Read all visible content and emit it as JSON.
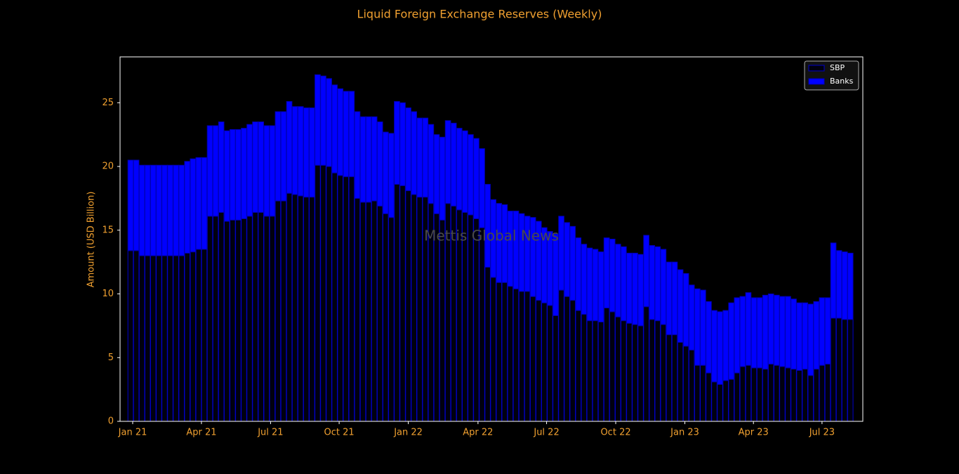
{
  "chart_data": {
    "type": "stacked_bar",
    "title": "Liquid Foreign Exchange Reserves (Weekly)",
    "y_label": "Amount (USD Billion)",
    "watermark": "Mettis Global News",
    "categories": [
      null,
      null,
      null,
      null,
      null,
      null,
      null,
      null,
      null,
      null,
      null,
      null,
      null,
      null,
      null,
      null,
      null,
      null,
      null,
      null,
      null,
      null,
      null,
      null,
      null,
      null,
      null,
      null,
      null,
      null,
      null,
      null,
      null,
      null,
      null,
      null,
      null,
      null,
      null,
      null,
      null,
      null,
      null,
      null,
      null,
      null,
      null,
      null,
      null,
      null,
      null,
      null,
      null,
      null,
      null,
      null,
      null,
      null,
      null,
      null,
      null,
      null,
      null,
      null,
      null,
      null,
      null,
      null,
      null,
      null,
      null,
      null,
      null,
      null,
      null,
      null,
      null,
      null,
      null,
      null,
      null,
      null,
      null,
      null,
      null,
      null,
      null,
      null,
      null,
      null,
      null,
      null,
      null,
      null,
      null,
      null,
      null,
      null,
      null,
      null,
      null,
      null,
      null,
      null,
      null,
      null,
      null,
      null,
      null,
      null,
      null,
      null,
      null,
      null,
      null,
      null,
      null,
      null,
      null,
      null,
      null,
      null,
      null,
      null,
      null,
      null,
      null,
      null
    ],
    "series": [
      {
        "name": "SBP",
        "color": "#00000f",
        "edgecolor": "#0000c8",
        "values": [
          13.4,
          13.4,
          13.0,
          13.0,
          13.0,
          13.0,
          13.0,
          13.0,
          13.0,
          13.0,
          13.2,
          13.3,
          13.5,
          13.5,
          16.1,
          16.1,
          16.4,
          15.7,
          15.8,
          15.8,
          15.9,
          16.1,
          16.4,
          16.4,
          16.1,
          16.1,
          17.3,
          17.3,
          17.9,
          17.8,
          17.7,
          17.6,
          17.6,
          20.1,
          20.1,
          20.0,
          19.5,
          19.3,
          19.2,
          19.2,
          17.5,
          17.2,
          17.2,
          17.3,
          16.9,
          16.3,
          16.0,
          18.6,
          18.5,
          18.1,
          17.8,
          17.6,
          17.6,
          17.1,
          16.3,
          15.8,
          17.1,
          16.9,
          16.6,
          16.4,
          16.2,
          15.9,
          15.2,
          12.1,
          11.3,
          10.9,
          10.9,
          10.6,
          10.4,
          10.2,
          10.2,
          9.8,
          9.5,
          9.3,
          9.1,
          8.3,
          10.3,
          9.8,
          9.5,
          8.7,
          8.4,
          7.9,
          7.9,
          7.8,
          8.9,
          8.6,
          8.2,
          7.9,
          7.7,
          7.6,
          7.5,
          9.0,
          8.0,
          7.9,
          7.6,
          6.8,
          6.8,
          6.2,
          5.9,
          5.6,
          4.4,
          4.4,
          3.8,
          3.1,
          2.9,
          3.2,
          3.3,
          3.8,
          4.3,
          4.4,
          4.2,
          4.2,
          4.1,
          4.5,
          4.4,
          4.3,
          4.2,
          4.1,
          4.0,
          4.1,
          3.6,
          4.1,
          4.4,
          4.5,
          8.1,
          8.1,
          8.0,
          8.0
        ]
      },
      {
        "name": "Banks",
        "color": "#0000ff",
        "edgecolor": "#0000b0",
        "values": [
          7.1,
          7.1,
          7.1,
          7.1,
          7.1,
          7.1,
          7.1,
          7.1,
          7.1,
          7.1,
          7.2,
          7.3,
          7.2,
          7.2,
          7.1,
          7.1,
          7.1,
          7.1,
          7.1,
          7.1,
          7.1,
          7.2,
          7.1,
          7.1,
          7.1,
          7.1,
          7.0,
          7.0,
          7.2,
          6.9,
          7.0,
          7.0,
          7.0,
          7.1,
          7.0,
          6.9,
          6.9,
          6.8,
          6.7,
          6.7,
          6.8,
          6.7,
          6.7,
          6.6,
          6.6,
          6.4,
          6.6,
          6.5,
          6.5,
          6.5,
          6.5,
          6.2,
          6.2,
          6.2,
          6.2,
          6.5,
          6.5,
          6.5,
          6.4,
          6.4,
          6.3,
          6.3,
          6.2,
          6.5,
          6.1,
          6.2,
          6.1,
          5.9,
          6.1,
          6.1,
          5.9,
          6.2,
          6.2,
          5.9,
          5.8,
          6.4,
          5.8,
          5.8,
          5.8,
          5.7,
          5.5,
          5.7,
          5.6,
          5.5,
          5.5,
          5.7,
          5.7,
          5.8,
          5.5,
          5.6,
          5.6,
          5.6,
          5.8,
          5.8,
          5.9,
          5.7,
          5.7,
          5.7,
          5.7,
          5.1,
          6.0,
          5.9,
          5.6,
          5.6,
          5.7,
          5.5,
          6.0,
          5.9,
          5.5,
          5.7,
          5.5,
          5.5,
          5.8,
          5.5,
          5.5,
          5.5,
          5.6,
          5.5,
          5.3,
          5.2,
          5.6,
          5.3,
          5.3,
          5.2,
          5.9,
          5.3,
          5.3,
          5.2
        ]
      }
    ],
    "xlim": [
      -1.86,
      129.2
    ],
    "xticks": [
      {
        "value": 0.37,
        "label": "Jan 21"
      },
      {
        "value": 12.5,
        "label": "Apr 21"
      },
      {
        "value": 24.7,
        "label": "Jul 21"
      },
      {
        "value": 36.8,
        "label": "Oct 21"
      },
      {
        "value": 49.0,
        "label": "Jan 22"
      },
      {
        "value": 61.3,
        "label": "Apr 22"
      },
      {
        "value": 73.4,
        "label": "Jul 22"
      },
      {
        "value": 85.6,
        "label": "Oct 22"
      },
      {
        "value": 97.8,
        "label": "Jan 23"
      },
      {
        "value": 109.9,
        "label": "Apr 23"
      },
      {
        "value": 122.0,
        "label": "Jul 23"
      }
    ],
    "ylim": [
      0,
      28.6
    ],
    "yticks": [
      0,
      5,
      10,
      15,
      20,
      25
    ],
    "legend": "upper right"
  }
}
